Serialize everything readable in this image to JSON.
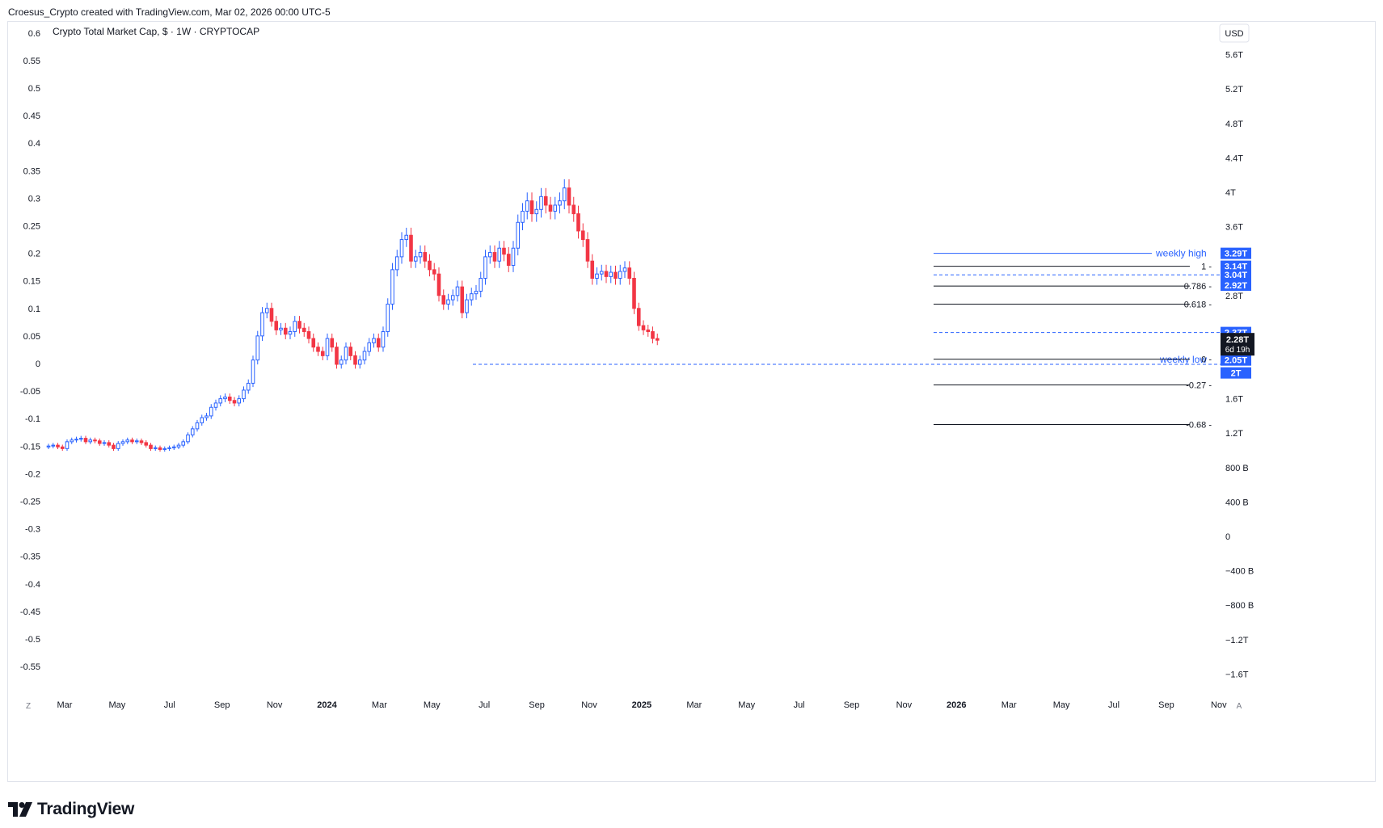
{
  "header": {
    "caption": "Croesus_Crypto created with TradingView.com, Mar 02, 2026 00:00 UTC-5"
  },
  "footer": {
    "brand": "TradingView"
  },
  "corner": {
    "left_button": "Z",
    "right_button": "A"
  },
  "colors": {
    "up": "#2962ff",
    "down": "#f23645",
    "wick_up": "#2962ff",
    "wick_down": "#f23645",
    "fib_line": "#131722",
    "dashed": "#2962ff",
    "tag_bg": "#2962ff",
    "last_tag_bg": "#131722"
  },
  "chart_data": {
    "type": "candlestick",
    "title": "Crypto Total Market Cap, $ · 1W · CRYPTOCAP",
    "currency_label": "USD",
    "left_axis": {
      "ticks": [
        "0.6",
        "0.55",
        "0.5",
        "0.45",
        "0.4",
        "0.35",
        "0.3",
        "0.25",
        "0.2",
        "0.15",
        "0.1",
        "0.05",
        "0",
        "-0.05",
        "-0.1",
        "-0.15",
        "-0.2",
        "-0.25",
        "-0.3",
        "-0.35",
        "-0.4",
        "-0.45",
        "-0.5",
        "-0.55"
      ]
    },
    "right_axis": {
      "ticks": [
        "5.6T",
        "5.2T",
        "4.8T",
        "4.4T",
        "4T",
        "3.6T",
        "2.8T",
        "1.6T",
        "1.2T",
        "800 B",
        "400 B",
        "0",
        "−400 B",
        "−800 B",
        "−1.2T",
        "−1.6T"
      ]
    },
    "x_axis": {
      "labels": [
        "Mar",
        "May",
        "Jul",
        "Sep",
        "Nov",
        "2024",
        "Mar",
        "May",
        "Jul",
        "Sep",
        "Nov",
        "2025",
        "Mar",
        "May",
        "Jul",
        "Sep",
        "Nov",
        "2026",
        "Mar",
        "May",
        "Jul",
        "Sep",
        "Nov"
      ],
      "bold": [
        "2024",
        "2025",
        "2026"
      ]
    },
    "series_close_trillions": [
      1.05,
      1.06,
      1.04,
      1.02,
      1.1,
      1.12,
      1.13,
      1.14,
      1.1,
      1.12,
      1.11,
      1.08,
      1.09,
      1.06,
      1.02,
      1.08,
      1.1,
      1.12,
      1.1,
      1.11,
      1.09,
      1.06,
      1.02,
      1.03,
      1.01,
      1.02,
      1.03,
      1.04,
      1.06,
      1.1,
      1.18,
      1.25,
      1.32,
      1.38,
      1.4,
      1.5,
      1.55,
      1.6,
      1.62,
      1.58,
      1.55,
      1.6,
      1.7,
      1.78,
      2.05,
      2.33,
      2.6,
      2.65,
      2.5,
      2.4,
      2.42,
      2.35,
      2.38,
      2.5,
      2.42,
      2.38,
      2.3,
      2.2,
      2.15,
      2.1,
      2.3,
      2.2,
      2.0,
      2.05,
      2.2,
      2.1,
      2.0,
      2.05,
      2.15,
      2.25,
      2.3,
      2.2,
      2.38,
      2.7,
      3.1,
      3.25,
      3.45,
      3.5,
      3.2,
      3.25,
      3.3,
      3.2,
      3.1,
      3.05,
      2.8,
      2.7,
      2.75,
      2.8,
      2.9,
      2.6,
      2.75,
      2.82,
      2.85,
      3.0,
      3.25,
      3.3,
      3.2,
      3.35,
      3.28,
      3.15,
      3.35,
      3.65,
      3.78,
      3.9,
      3.75,
      3.8,
      3.95,
      3.85,
      3.78,
      3.85,
      3.9,
      4.05,
      3.85,
      3.75,
      3.55,
      3.45,
      3.2,
      3.0,
      3.05,
      3.08,
      3.02,
      3.07,
      3.0,
      3.08,
      3.12,
      3.0,
      2.65,
      2.45,
      2.4,
      2.38,
      2.3,
      2.28
    ],
    "annotations": {
      "weekly_high_label": "weekly high",
      "weekly_low_label": "weekly low",
      "fib_levels": [
        {
          "label": "1",
          "value_t": 3.14
        },
        {
          "label": "0.786",
          "value_t": 2.91
        },
        {
          "label": "0.618",
          "value_t": 2.7
        },
        {
          "label": "0",
          "value_t": 2.06
        },
        {
          "label": "-0.27",
          "value_t": 1.76
        },
        {
          "label": "-0.68",
          "value_t": 1.3
        }
      ],
      "price_tags": [
        {
          "text": "3.29T",
          "value_t": 3.29
        },
        {
          "text": "3.14T",
          "value_t": 3.14
        },
        {
          "text": "3.04T",
          "value_t": 3.04
        },
        {
          "text": "2.92T",
          "value_t": 2.92
        },
        {
          "text": "2.37T",
          "value_t": 2.37
        },
        {
          "text": "2.05T",
          "value_t": 2.05
        },
        {
          "text": "2T",
          "value_t": 1.9
        }
      ],
      "last_price": {
        "text": "2.28T",
        "countdown": "6d 19h",
        "value_t": 2.28
      }
    }
  }
}
